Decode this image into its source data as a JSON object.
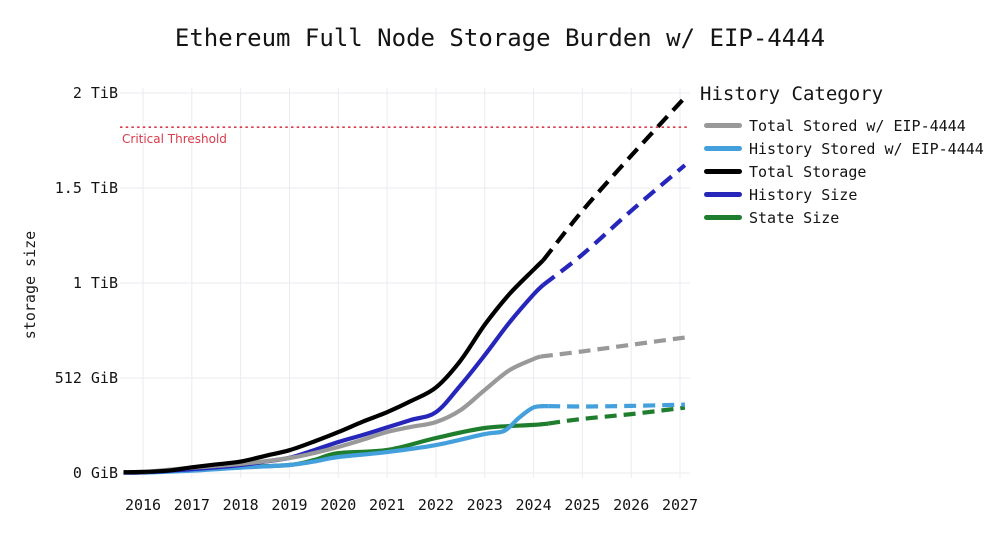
{
  "chart_data": {
    "type": "line",
    "title": "Ethereum Full Node Storage Burden w/ EIP-4444",
    "xlabel": "",
    "ylabel": "storage size",
    "legend_title": "History Category",
    "legend_position": "upper-right",
    "grid": true,
    "grid_color": "#ebebf1",
    "units": "TiB",
    "xlim": [
      2015.6,
      2027.2
    ],
    "ylim": [
      0,
      2.07
    ],
    "x_ticks": [
      2016,
      2017,
      2018,
      2019,
      2020,
      2021,
      2022,
      2023,
      2024,
      2025,
      2026,
      2027
    ],
    "y_ticks": [
      {
        "label": "0 GiB",
        "value": 0
      },
      {
        "label": "512 GiB",
        "value": 0.5
      },
      {
        "label": "1 TiB",
        "value": 1
      },
      {
        "label": "1.5 TiB",
        "value": 1.5
      },
      {
        "label": "2 TiB",
        "value": 2
      }
    ],
    "threshold": {
      "label": "Critical Threshold",
      "value_tib": 1.82,
      "color": "#d93b4b",
      "style": "dotted"
    },
    "projection_start_year": 2024.2,
    "series": [
      {
        "name": "Total Stored w/ EIP-4444",
        "color": "#999999",
        "solid": [
          [
            2015.6,
            0.004
          ],
          [
            2016,
            0.005
          ],
          [
            2017,
            0.028
          ],
          [
            2018,
            0.048
          ],
          [
            2019,
            0.079
          ],
          [
            2019.5,
            0.105
          ],
          [
            2020,
            0.137
          ],
          [
            2020.5,
            0.175
          ],
          [
            2021,
            0.216
          ],
          [
            2021.5,
            0.243
          ],
          [
            2022,
            0.268
          ],
          [
            2022.5,
            0.33
          ],
          [
            2023,
            0.437
          ],
          [
            2023.5,
            0.54
          ],
          [
            2024,
            0.6
          ],
          [
            2024.15,
            0.613
          ]
        ],
        "dashed": [
          [
            2024.15,
            0.613
          ],
          [
            2025,
            0.64
          ],
          [
            2026,
            0.675
          ],
          [
            2027.1,
            0.713
          ]
        ]
      },
      {
        "name": "History Stored w/ EIP-4444",
        "color": "#44a0dc",
        "solid": [
          [
            2015.6,
            0.001
          ],
          [
            2016,
            0.002
          ],
          [
            2017,
            0.012
          ],
          [
            2018,
            0.028
          ],
          [
            2019,
            0.042
          ],
          [
            2019.5,
            0.06
          ],
          [
            2020,
            0.084
          ],
          [
            2021,
            0.11
          ],
          [
            2022,
            0.147
          ],
          [
            2023,
            0.205
          ],
          [
            2023.4,
            0.222
          ],
          [
            2023.7,
            0.29
          ],
          [
            2024,
            0.345
          ],
          [
            2024.3,
            0.352
          ]
        ],
        "dashed": [
          [
            2024.3,
            0.352
          ],
          [
            2025,
            0.35
          ],
          [
            2026,
            0.353
          ],
          [
            2027.1,
            0.36
          ]
        ]
      },
      {
        "name": "Total Storage",
        "color": "#000000",
        "solid": [
          [
            2015.6,
            0.004
          ],
          [
            2016,
            0.006
          ],
          [
            2016.5,
            0.012
          ],
          [
            2017,
            0.03
          ],
          [
            2017.5,
            0.045
          ],
          [
            2018,
            0.06
          ],
          [
            2018.5,
            0.09
          ],
          [
            2019,
            0.12
          ],
          [
            2019.5,
            0.165
          ],
          [
            2020,
            0.215
          ],
          [
            2020.5,
            0.27
          ],
          [
            2021,
            0.32
          ],
          [
            2021.5,
            0.38
          ],
          [
            2022,
            0.45
          ],
          [
            2022.5,
            0.59
          ],
          [
            2023,
            0.78
          ],
          [
            2023.5,
            0.94
          ],
          [
            2024,
            1.07
          ],
          [
            2024.2,
            1.12
          ]
        ],
        "dashed": [
          [
            2024.2,
            1.12
          ],
          [
            2025,
            1.38
          ],
          [
            2026,
            1.67
          ],
          [
            2027.15,
            1.99
          ]
        ]
      },
      {
        "name": "History Size",
        "color": "#2626bb",
        "solid": [
          [
            2015.6,
            0.002
          ],
          [
            2016,
            0.003
          ],
          [
            2017,
            0.02
          ],
          [
            2017.5,
            0.03
          ],
          [
            2018,
            0.042
          ],
          [
            2018.5,
            0.06
          ],
          [
            2019,
            0.08
          ],
          [
            2019.5,
            0.12
          ],
          [
            2020,
            0.163
          ],
          [
            2020.5,
            0.2
          ],
          [
            2021,
            0.24
          ],
          [
            2021.5,
            0.28
          ],
          [
            2022,
            0.32
          ],
          [
            2022.5,
            0.46
          ],
          [
            2023,
            0.62
          ],
          [
            2023.5,
            0.79
          ],
          [
            2024,
            0.94
          ],
          [
            2024.2,
            0.99
          ]
        ],
        "dashed": [
          [
            2024.2,
            0.99
          ],
          [
            2025,
            1.15
          ],
          [
            2026,
            1.38
          ],
          [
            2027.1,
            1.62
          ]
        ]
      },
      {
        "name": "State Size",
        "color": "#1f7d2e",
        "solid": [
          [
            2015.6,
            0.002
          ],
          [
            2016,
            0.003
          ],
          [
            2017,
            0.015
          ],
          [
            2018,
            0.032
          ],
          [
            2019,
            0.042
          ],
          [
            2019.5,
            0.068
          ],
          [
            2020,
            0.105
          ],
          [
            2021,
            0.121
          ],
          [
            2022,
            0.184
          ],
          [
            2023,
            0.237
          ],
          [
            2024,
            0.253
          ],
          [
            2024.3,
            0.26
          ]
        ],
        "dashed": [
          [
            2024.3,
            0.26
          ],
          [
            2025,
            0.285
          ],
          [
            2026,
            0.31
          ],
          [
            2027.1,
            0.344
          ]
        ]
      }
    ]
  }
}
